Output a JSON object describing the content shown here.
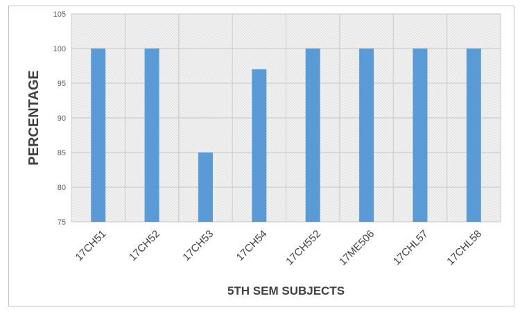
{
  "chart_data": {
    "type": "bar",
    "title": "",
    "xlabel": "5TH SEM SUBJECTS",
    "ylabel": "PERCENTAGE",
    "categories": [
      "17CH51",
      "17CH52",
      "17CH53",
      "17CH54",
      "17CH552",
      "17ME506",
      "17CHL57",
      "17CHL58"
    ],
    "values": [
      100,
      100,
      85,
      97,
      100,
      100,
      100,
      100
    ],
    "ylim": [
      75,
      105
    ],
    "yticks": [
      75,
      80,
      85,
      90,
      95,
      100,
      105
    ],
    "grid": true,
    "legend": "none",
    "colors": {
      "bar": "#5b9bd5",
      "grid": "#c8c8c8",
      "plot_bg": "#eeeeee"
    }
  }
}
